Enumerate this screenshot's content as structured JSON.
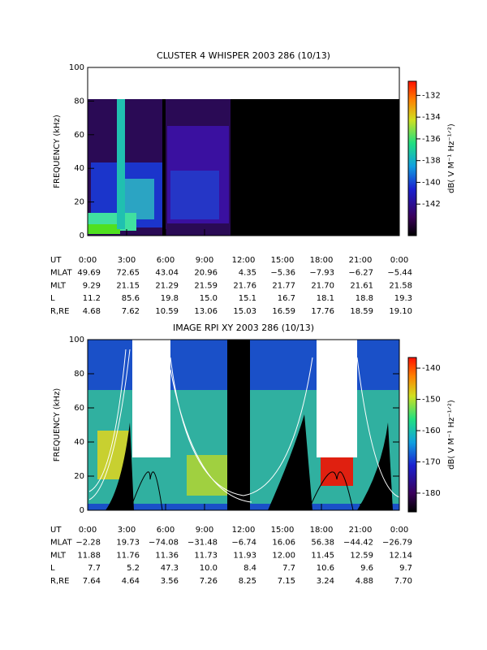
{
  "chart_data": [
    {
      "type": "spectrogram",
      "title": "CLUSTER 4 WHISPER 2003 286 (10/13)",
      "ylabel": "FREQUENCY (kHz)",
      "ylim": [
        0,
        100
      ],
      "yticks": [
        0,
        20,
        40,
        60,
        80,
        100
      ],
      "xticks": [
        "0:00",
        "3:00",
        "6:00",
        "9:00",
        "12:00",
        "15:00",
        "18:00",
        "21:00",
        "0:00"
      ],
      "xlabel": "UT",
      "colorbar": {
        "label": "dB( V M⁻¹ Hz⁻¹ᐟ²)",
        "lim": [
          -130.7,
          -144.9
        ],
        "ticks": [
          -132,
          -134,
          -136,
          -138,
          -140,
          -142
        ]
      },
      "ephemeris": [
        {
          "name": "MLAT",
          "values": [
            "49.69",
            "72.65",
            "43.04",
            "20.96",
            "4.35",
            "−5.36",
            "−7.93",
            "−6.27",
            "−5.44"
          ]
        },
        {
          "name": "MLT",
          "values": [
            "9.29",
            "21.15",
            "21.29",
            "21.59",
            "21.76",
            "21.77",
            "21.70",
            "21.61",
            "21.58"
          ]
        },
        {
          "name": "L",
          "values": [
            "11.2",
            "85.6",
            "19.8",
            "15.0",
            "15.1",
            "16.7",
            "18.1",
            "18.8",
            "19.3"
          ]
        },
        {
          "name": "R,RE",
          "values": [
            "4.68",
            "7.62",
            "10.59",
            "13.06",
            "15.03",
            "16.59",
            "17.76",
            "18.59",
            "19.10"
          ]
        }
      ]
    },
    {
      "type": "spectrogram",
      "title": "IMAGE RPI XY 2003 286 (10/13)",
      "ylabel": "FREQUENCY (kHz)",
      "ylim": [
        0,
        100
      ],
      "yticks": [
        0,
        20,
        40,
        60,
        80,
        100
      ],
      "xticks": [
        "0:00",
        "3:00",
        "6:00",
        "9:00",
        "12:00",
        "15:00",
        "18:00",
        "21:00",
        "0:00"
      ],
      "xlabel": "UT",
      "colorbar": {
        "label": "dB( V M⁻¹ Hz⁻¹ᐟ²)",
        "lim": [
          -136.6,
          -186
        ],
        "ticks": [
          -140,
          -150,
          -160,
          -170,
          -180
        ]
      },
      "ephemeris": [
        {
          "name": "MLAT",
          "values": [
            "−2.28",
            "19.73",
            "−74.08",
            "−31.48",
            "−6.74",
            "16.06",
            "56.38",
            "−44.42",
            "−26.79"
          ]
        },
        {
          "name": "MLT",
          "values": [
            "11.88",
            "11.76",
            "11.36",
            "11.73",
            "11.93",
            "12.00",
            "11.45",
            "12.59",
            "12.14"
          ]
        },
        {
          "name": "L",
          "values": [
            "7.7",
            "5.2",
            "47.3",
            "10.0",
            "8.4",
            "7.7",
            "10.6",
            "9.6",
            "9.7"
          ]
        },
        {
          "name": "R,RE",
          "values": [
            "7.64",
            "4.64",
            "3.56",
            "7.26",
            "8.25",
            "7.15",
            "3.24",
            "4.88",
            "7.70"
          ]
        }
      ]
    }
  ]
}
